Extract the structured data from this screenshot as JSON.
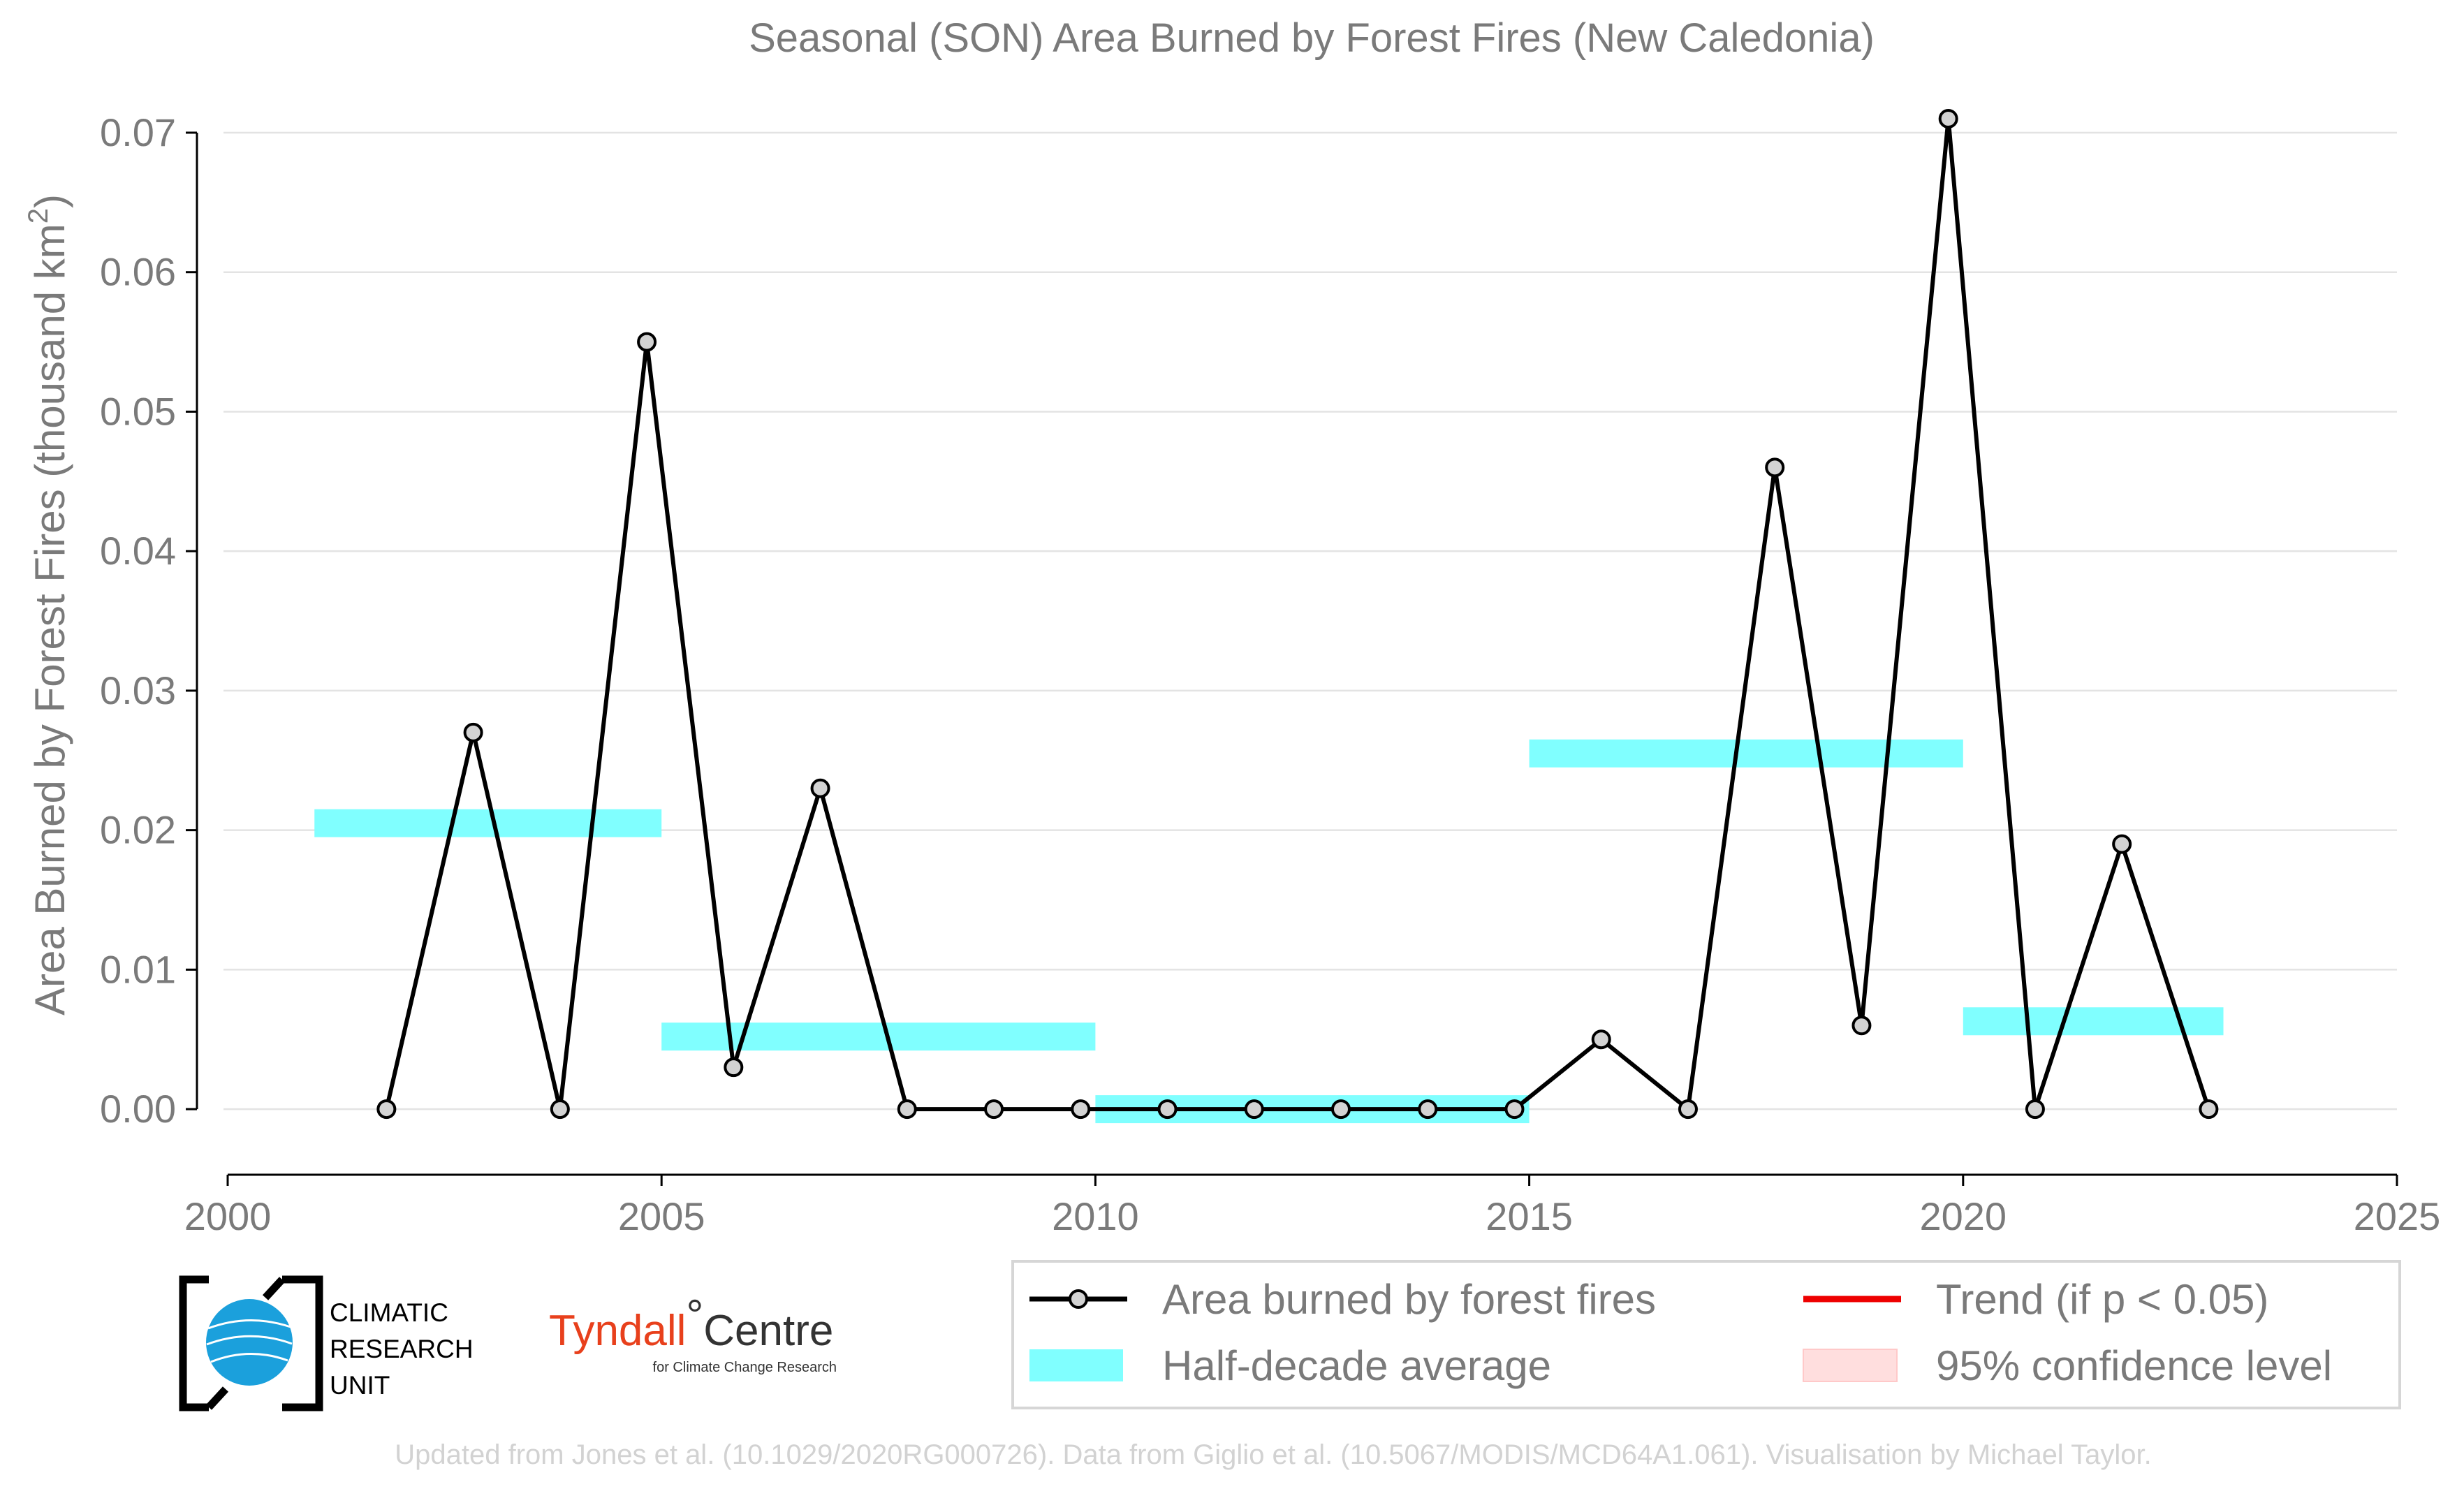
{
  "chart_data": {
    "type": "line",
    "title": "Seasonal (SON) Area Burned by Forest Fires (New Caledonia)",
    "ylabel": "Area Burned by Forest Fires (thousand km",
    "ylabel_superscript": "2",
    "ylabel_suffix": ")",
    "xlabel": "",
    "xlim": [
      2000,
      2025
    ],
    "ylim": [
      -0.004,
      0.071
    ],
    "x_ticks": [
      2000,
      2005,
      2010,
      2015,
      2020,
      2025
    ],
    "x_tick_labels": [
      "2000",
      "2005",
      "2010",
      "2015",
      "2020",
      "2025"
    ],
    "y_ticks": [
      0,
      0.01,
      0.02,
      0.03,
      0.04,
      0.05,
      0.06,
      0.07
    ],
    "y_tick_labels": [
      "0.00",
      "0.01",
      "0.02",
      "0.03",
      "0.04",
      "0.05",
      "0.06",
      "0.07"
    ],
    "grid": "horizontal",
    "series": [
      {
        "name": "Area burned by forest fires",
        "color": "#000000",
        "marker_fill": "#d3d3d3",
        "x": [
          2001.83,
          2002.83,
          2003.83,
          2004.83,
          2005.83,
          2006.83,
          2007.83,
          2008.83,
          2009.83,
          2010.83,
          2011.83,
          2012.83,
          2013.83,
          2014.83,
          2015.83,
          2016.83,
          2017.83,
          2018.83,
          2019.83,
          2020.83,
          2021.83,
          2022.83
        ],
        "values": [
          0.0,
          0.027,
          0.0,
          0.055,
          0.003,
          0.023,
          0.0,
          0.0,
          0.0,
          0.0,
          0.0,
          0.0,
          0.0,
          0.0,
          0.005,
          0.0,
          0.046,
          0.006,
          0.071,
          0.0,
          0.019,
          0.0
        ]
      }
    ],
    "half_decade_average": {
      "name": "Half-decade average",
      "color": "#80ffff",
      "segments": [
        {
          "x_start": 2001,
          "x_end": 2005,
          "value": 0.0205
        },
        {
          "x_start": 2005,
          "x_end": 2010,
          "value": 0.0052
        },
        {
          "x_start": 2010,
          "x_end": 2015,
          "value": 0.0
        },
        {
          "x_start": 2015,
          "x_end": 2020,
          "value": 0.0255
        },
        {
          "x_start": 2020,
          "x_end": 2023,
          "value": 0.0063
        }
      ]
    },
    "legend": {
      "placement": "bottom-right",
      "entries": [
        {
          "label": "Area burned by forest fires",
          "kind": "line-marker",
          "color": "#000000"
        },
        {
          "label": "Trend (if p < 0.05)",
          "kind": "line",
          "color": "#ee0000"
        },
        {
          "label": "Half-decade average",
          "kind": "band",
          "color": "#80ffff"
        },
        {
          "label": "95% confidence level",
          "kind": "band",
          "color": "#ffdede"
        }
      ]
    }
  },
  "logos": {
    "cru_lines": [
      "CLIMATIC",
      "RESEARCH",
      "UNIT"
    ],
    "tyndall_name": "Tyndall",
    "tyndall_degree": "°",
    "tyndall_centre": "Centre",
    "tyndall_sub": "for Climate Change Research"
  },
  "footnote": "Updated from Jones et al. (10.1029/2020RG000726). Data from Giglio et al. (10.5067/MODIS/MCD64A1.061). Visualisation by Michael Taylor."
}
